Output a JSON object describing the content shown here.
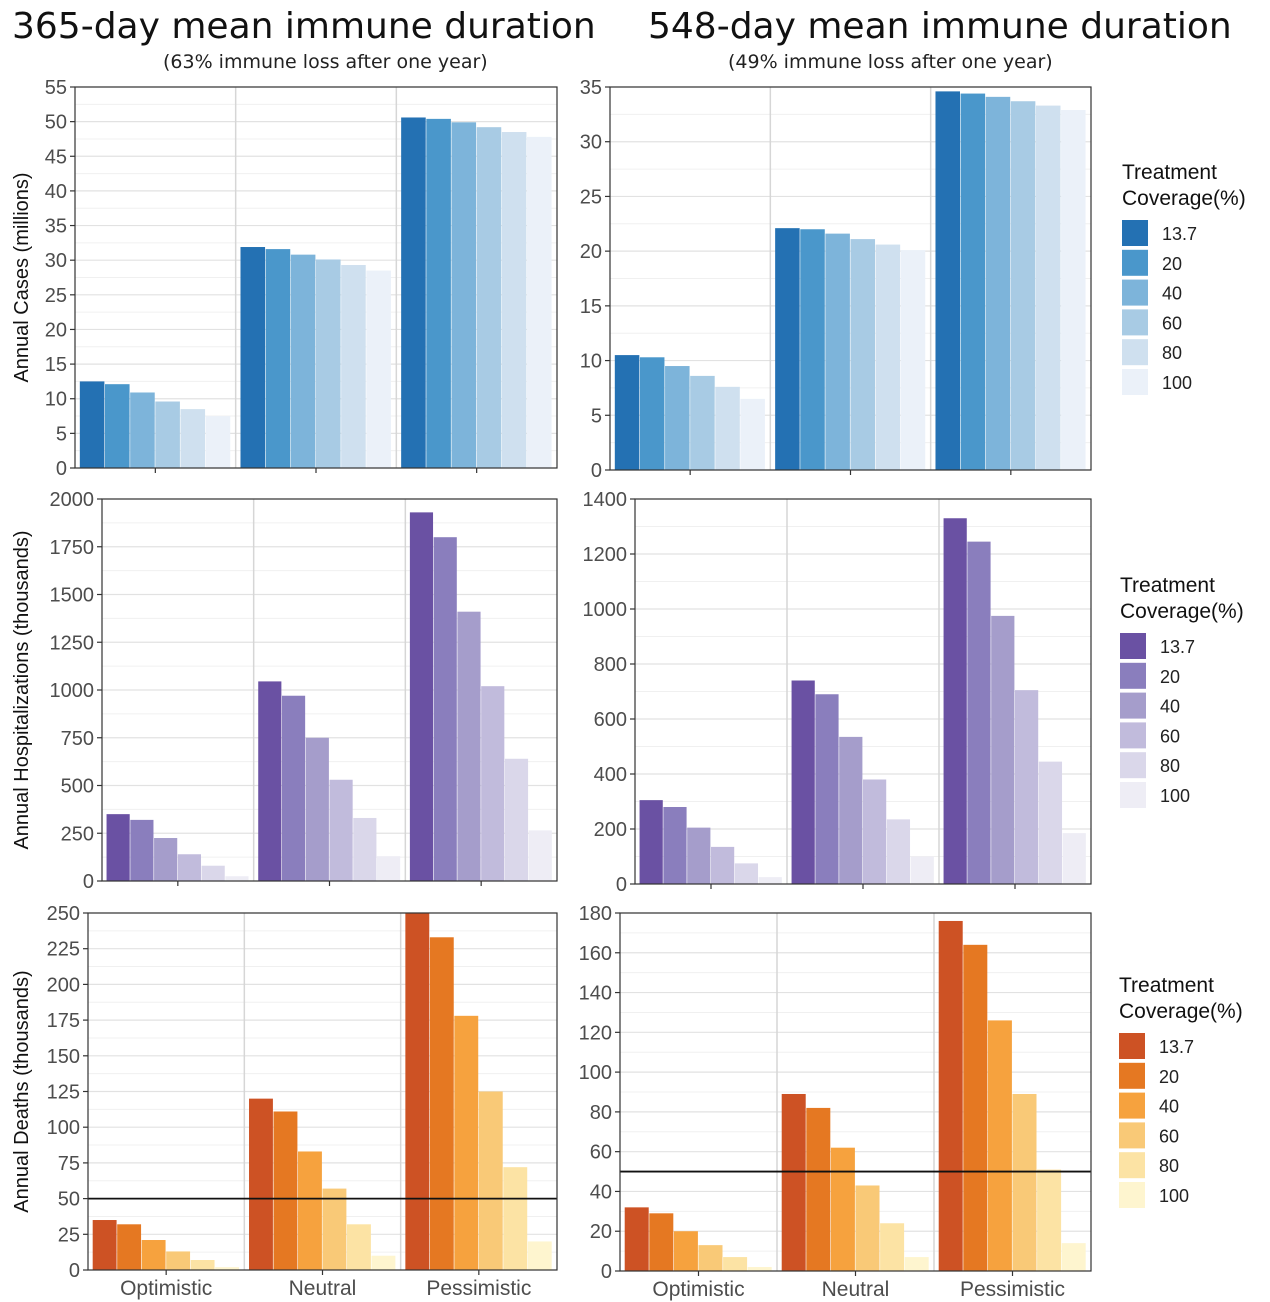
{
  "columns": [
    {
      "title": "365-day mean immune duration",
      "subtitle": "(63% immune loss after one year)"
    },
    {
      "title": "548-day mean immune duration",
      "subtitle": "(49% immune loss after one year)"
    }
  ],
  "legends": [
    {
      "title_line1": "Treatment",
      "title_line2": "Coverage(%)",
      "entries": [
        "13.7",
        "20",
        "40",
        "60",
        "80",
        "100"
      ],
      "colors": [
        "#2471b3",
        "#4a97cb",
        "#7db4da",
        "#a8cbe4",
        "#cfe0ef",
        "#ebf1f9"
      ]
    },
    {
      "title_line1": "Treatment",
      "title_line2": "Coverage(%)",
      "entries": [
        "13.7",
        "20",
        "40",
        "60",
        "80",
        "100"
      ],
      "colors": [
        "#6a51a3",
        "#8a7ebd",
        "#a59dcb",
        "#c1bbdc",
        "#dad7ea",
        "#eeedf5"
      ]
    },
    {
      "title_line1": "Treatment",
      "title_line2": "Coverage(%)",
      "entries": [
        "13.7",
        "20",
        "40",
        "60",
        "80",
        "100"
      ],
      "colors": [
        "#cd5224",
        "#e57822",
        "#f6a23e",
        "#f9c977",
        "#fce3a4",
        "#fef5cf"
      ]
    }
  ],
  "chart_data": [
    {
      "type": "bar",
      "row": 0,
      "col": 0,
      "ylabel": "Annual Cases (millions)",
      "categories": [
        "Optimistic",
        "Neutral",
        "Pessimistic"
      ],
      "ylim": [
        0,
        55
      ],
      "yticks": [
        0,
        5,
        10,
        15,
        20,
        25,
        30,
        35,
        40,
        45,
        50,
        55
      ],
      "series": [
        {
          "name": "13.7",
          "values": [
            12.5,
            31.9,
            50.6
          ]
        },
        {
          "name": "20",
          "values": [
            12.1,
            31.6,
            50.4
          ]
        },
        {
          "name": "40",
          "values": [
            10.9,
            30.8,
            49.9
          ]
        },
        {
          "name": "60",
          "values": [
            9.6,
            30.1,
            49.2
          ]
        },
        {
          "name": "80",
          "values": [
            8.5,
            29.3,
            48.5
          ]
        },
        {
          "name": "100",
          "values": [
            7.5,
            28.5,
            47.8
          ]
        }
      ],
      "hline": null,
      "show_x_labels": false,
      "grid": true
    },
    {
      "type": "bar",
      "row": 0,
      "col": 1,
      "ylabel": "",
      "categories": [
        "Optimistic",
        "Neutral",
        "Pessimistic"
      ],
      "ylim": [
        0,
        35
      ],
      "yticks": [
        0,
        5,
        10,
        15,
        20,
        25,
        30,
        35
      ],
      "series": [
        {
          "name": "13.7",
          "values": [
            10.5,
            22.1,
            34.6
          ]
        },
        {
          "name": "20",
          "values": [
            10.3,
            22.0,
            34.4
          ]
        },
        {
          "name": "40",
          "values": [
            9.5,
            21.6,
            34.1
          ]
        },
        {
          "name": "60",
          "values": [
            8.6,
            21.1,
            33.7
          ]
        },
        {
          "name": "80",
          "values": [
            7.6,
            20.6,
            33.3
          ]
        },
        {
          "name": "100",
          "values": [
            6.5,
            20.1,
            32.9
          ]
        }
      ],
      "hline": null,
      "show_x_labels": false,
      "grid": true
    },
    {
      "type": "bar",
      "row": 1,
      "col": 0,
      "ylabel": "Annual Hospitalizations (thousands)",
      "categories": [
        "Optimistic",
        "Neutral",
        "Pessimistic"
      ],
      "ylim": [
        0,
        2000
      ],
      "yticks": [
        0,
        250,
        500,
        750,
        1000,
        1250,
        1500,
        1750,
        2000
      ],
      "series": [
        {
          "name": "13.7",
          "values": [
            350,
            1045,
            1930
          ]
        },
        {
          "name": "20",
          "values": [
            320,
            970,
            1800
          ]
        },
        {
          "name": "40",
          "values": [
            225,
            750,
            1410
          ]
        },
        {
          "name": "60",
          "values": [
            140,
            530,
            1020
          ]
        },
        {
          "name": "80",
          "values": [
            80,
            330,
            640
          ]
        },
        {
          "name": "100",
          "values": [
            25,
            130,
            265
          ]
        }
      ],
      "hline": null,
      "show_x_labels": false,
      "grid": true
    },
    {
      "type": "bar",
      "row": 1,
      "col": 1,
      "ylabel": "",
      "categories": [
        "Optimistic",
        "Neutral",
        "Pessimistic"
      ],
      "ylim": [
        0,
        1400
      ],
      "yticks": [
        0,
        200,
        400,
        600,
        800,
        1000,
        1200,
        1400
      ],
      "series": [
        {
          "name": "13.7",
          "values": [
            305,
            740,
            1330
          ]
        },
        {
          "name": "20",
          "values": [
            280,
            690,
            1245
          ]
        },
        {
          "name": "40",
          "values": [
            205,
            535,
            975
          ]
        },
        {
          "name": "60",
          "values": [
            135,
            380,
            705
          ]
        },
        {
          "name": "80",
          "values": [
            75,
            235,
            445
          ]
        },
        {
          "name": "100",
          "values": [
            25,
            100,
            185
          ]
        }
      ],
      "hline": null,
      "show_x_labels": false,
      "grid": true
    },
    {
      "type": "bar",
      "row": 2,
      "col": 0,
      "ylabel": "Annual Deaths (thousands)",
      "categories": [
        "Optimistic",
        "Neutral",
        "Pessimistic"
      ],
      "ylim": [
        0,
        250
      ],
      "yticks": [
        0,
        25,
        50,
        75,
        100,
        125,
        150,
        175,
        200,
        225,
        250
      ],
      "series": [
        {
          "name": "13.7",
          "values": [
            35,
            120,
            250
          ]
        },
        {
          "name": "20",
          "values": [
            32,
            111,
            233
          ]
        },
        {
          "name": "40",
          "values": [
            21,
            83,
            178
          ]
        },
        {
          "name": "60",
          "values": [
            13,
            57,
            125
          ]
        },
        {
          "name": "80",
          "values": [
            7,
            32,
            72
          ]
        },
        {
          "name": "100",
          "values": [
            2,
            10,
            20
          ]
        }
      ],
      "hline": 50,
      "show_x_labels": true,
      "grid": true
    },
    {
      "type": "bar",
      "row": 2,
      "col": 1,
      "ylabel": "",
      "categories": [
        "Optimistic",
        "Neutral",
        "Pessimistic"
      ],
      "ylim": [
        0,
        180
      ],
      "yticks": [
        0,
        20,
        40,
        60,
        80,
        100,
        120,
        140,
        160,
        180
      ],
      "series": [
        {
          "name": "13.7",
          "values": [
            32,
            89,
            176
          ]
        },
        {
          "name": "20",
          "values": [
            29,
            82,
            164
          ]
        },
        {
          "name": "40",
          "values": [
            20,
            62,
            126
          ]
        },
        {
          "name": "60",
          "values": [
            13,
            43,
            89
          ]
        },
        {
          "name": "80",
          "values": [
            7,
            24,
            51
          ]
        },
        {
          "name": "100",
          "values": [
            2,
            7,
            14
          ]
        }
      ],
      "hline": 50,
      "show_x_labels": true,
      "grid": true
    }
  ]
}
